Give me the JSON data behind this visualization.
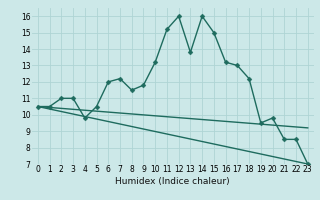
{
  "title": "",
  "xlabel": "Humidex (Indice chaleur)",
  "bg_color": "#cce8e8",
  "line_color": "#1e6b5e",
  "grid_color": "#afd4d4",
  "xlim": [
    -0.5,
    23.5
  ],
  "ylim": [
    7,
    16.5
  ],
  "xticks": [
    0,
    1,
    2,
    3,
    4,
    5,
    6,
    7,
    8,
    9,
    10,
    11,
    12,
    13,
    14,
    15,
    16,
    17,
    18,
    19,
    20,
    21,
    22,
    23
  ],
  "yticks": [
    7,
    8,
    9,
    10,
    11,
    12,
    13,
    14,
    15,
    16
  ],
  "main_series": [
    [
      0,
      10.5
    ],
    [
      1,
      10.5
    ],
    [
      2,
      11.0
    ],
    [
      3,
      11.0
    ],
    [
      4,
      9.8
    ],
    [
      5,
      10.5
    ],
    [
      6,
      12.0
    ],
    [
      7,
      12.2
    ],
    [
      8,
      11.5
    ],
    [
      9,
      11.8
    ],
    [
      10,
      13.2
    ],
    [
      11,
      15.2
    ],
    [
      12,
      16.0
    ],
    [
      13,
      13.8
    ],
    [
      14,
      16.0
    ],
    [
      15,
      15.0
    ],
    [
      16,
      13.2
    ],
    [
      17,
      13.0
    ],
    [
      18,
      12.2
    ],
    [
      19,
      9.5
    ],
    [
      20,
      9.8
    ],
    [
      21,
      8.5
    ],
    [
      22,
      8.5
    ],
    [
      23,
      7.0
    ]
  ],
  "trend_line1": [
    [
      0,
      10.5
    ],
    [
      23,
      9.2
    ]
  ],
  "trend_line2": [
    [
      0,
      10.5
    ],
    [
      23,
      7.0
    ]
  ],
  "marker_size": 2.5,
  "linewidth": 1.0,
  "tick_fontsize": 5.5,
  "xlabel_fontsize": 6.5
}
